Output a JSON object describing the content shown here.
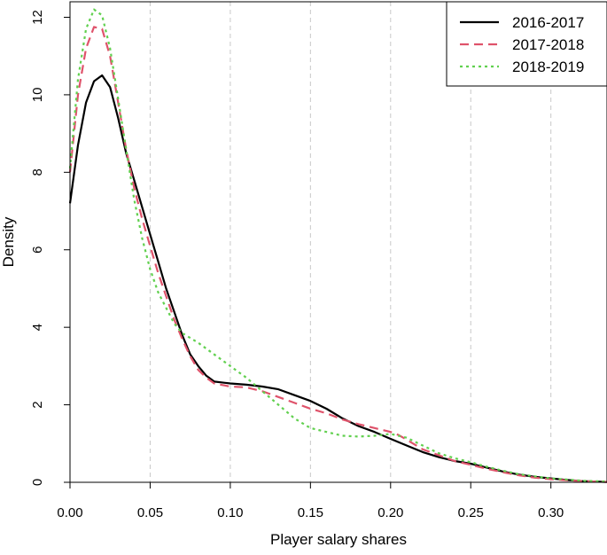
{
  "chart_data": {
    "type": "line",
    "title": "",
    "xlabel": "Player salary shares",
    "ylabel": "Density",
    "xlim": [
      0,
      0.335
    ],
    "ylim": [
      0,
      12.4
    ],
    "xticks": [
      "0.00",
      "0.05",
      "0.10",
      "0.15",
      "0.20",
      "0.25",
      "0.30"
    ],
    "yticks": [
      "0",
      "2",
      "4",
      "6",
      "8",
      "10",
      "12"
    ],
    "grid": "vertical dashed at x ticks",
    "legend_position": "top-right",
    "series": [
      {
        "name": "2016-2017",
        "color": "#000000",
        "dash": "solid",
        "points": [
          [
            0.0,
            7.2
          ],
          [
            0.005,
            8.7
          ],
          [
            0.01,
            9.8
          ],
          [
            0.015,
            10.35
          ],
          [
            0.02,
            10.5
          ],
          [
            0.025,
            10.2
          ],
          [
            0.03,
            9.4
          ],
          [
            0.035,
            8.5
          ],
          [
            0.04,
            7.8
          ],
          [
            0.045,
            7.1
          ],
          [
            0.05,
            6.4
          ],
          [
            0.055,
            5.7
          ],
          [
            0.06,
            5.0
          ],
          [
            0.065,
            4.4
          ],
          [
            0.07,
            3.8
          ],
          [
            0.075,
            3.3
          ],
          [
            0.08,
            3.0
          ],
          [
            0.085,
            2.75
          ],
          [
            0.09,
            2.6
          ],
          [
            0.1,
            2.55
          ],
          [
            0.11,
            2.52
          ],
          [
            0.12,
            2.47
          ],
          [
            0.13,
            2.4
          ],
          [
            0.14,
            2.25
          ],
          [
            0.15,
            2.1
          ],
          [
            0.16,
            1.9
          ],
          [
            0.17,
            1.65
          ],
          [
            0.18,
            1.45
          ],
          [
            0.19,
            1.3
          ],
          [
            0.2,
            1.12
          ],
          [
            0.21,
            0.95
          ],
          [
            0.22,
            0.78
          ],
          [
            0.23,
            0.65
          ],
          [
            0.24,
            0.55
          ],
          [
            0.25,
            0.48
          ],
          [
            0.26,
            0.38
          ],
          [
            0.27,
            0.28
          ],
          [
            0.28,
            0.2
          ],
          [
            0.29,
            0.14
          ],
          [
            0.3,
            0.1
          ],
          [
            0.31,
            0.06
          ],
          [
            0.32,
            0.03
          ],
          [
            0.335,
            0.01
          ]
        ]
      },
      {
        "name": "2017-2018",
        "color": "#DF536B",
        "dash": "dashed",
        "points": [
          [
            0.0,
            8.0
          ],
          [
            0.005,
            10.0
          ],
          [
            0.01,
            11.2
          ],
          [
            0.015,
            11.75
          ],
          [
            0.02,
            11.7
          ],
          [
            0.025,
            11.0
          ],
          [
            0.03,
            9.8
          ],
          [
            0.035,
            8.6
          ],
          [
            0.04,
            7.6
          ],
          [
            0.045,
            6.8
          ],
          [
            0.05,
            6.1
          ],
          [
            0.055,
            5.4
          ],
          [
            0.06,
            4.8
          ],
          [
            0.065,
            4.2
          ],
          [
            0.07,
            3.7
          ],
          [
            0.075,
            3.25
          ],
          [
            0.08,
            2.9
          ],
          [
            0.085,
            2.7
          ],
          [
            0.09,
            2.55
          ],
          [
            0.1,
            2.47
          ],
          [
            0.11,
            2.45
          ],
          [
            0.12,
            2.35
          ],
          [
            0.13,
            2.2
          ],
          [
            0.14,
            2.05
          ],
          [
            0.15,
            1.9
          ],
          [
            0.16,
            1.78
          ],
          [
            0.17,
            1.62
          ],
          [
            0.18,
            1.5
          ],
          [
            0.19,
            1.4
          ],
          [
            0.2,
            1.3
          ],
          [
            0.205,
            1.22
          ],
          [
            0.21,
            1.1
          ],
          [
            0.22,
            0.85
          ],
          [
            0.23,
            0.7
          ],
          [
            0.24,
            0.55
          ],
          [
            0.25,
            0.45
          ],
          [
            0.26,
            0.35
          ],
          [
            0.27,
            0.26
          ],
          [
            0.28,
            0.18
          ],
          [
            0.29,
            0.12
          ],
          [
            0.3,
            0.08
          ],
          [
            0.31,
            0.05
          ],
          [
            0.32,
            0.03
          ],
          [
            0.335,
            0.01
          ]
        ]
      },
      {
        "name": "2018-2019",
        "color": "#61D04F",
        "dash": "dotted",
        "points": [
          [
            0.0,
            8.1
          ],
          [
            0.005,
            10.4
          ],
          [
            0.01,
            11.7
          ],
          [
            0.015,
            12.2
          ],
          [
            0.02,
            12.05
          ],
          [
            0.025,
            11.2
          ],
          [
            0.03,
            9.9
          ],
          [
            0.035,
            8.6
          ],
          [
            0.04,
            7.3
          ],
          [
            0.045,
            6.3
          ],
          [
            0.05,
            5.5
          ],
          [
            0.055,
            4.9
          ],
          [
            0.06,
            4.5
          ],
          [
            0.065,
            4.1
          ],
          [
            0.07,
            3.85
          ],
          [
            0.08,
            3.6
          ],
          [
            0.09,
            3.3
          ],
          [
            0.1,
            3.0
          ],
          [
            0.11,
            2.7
          ],
          [
            0.12,
            2.35
          ],
          [
            0.13,
            2.0
          ],
          [
            0.14,
            1.65
          ],
          [
            0.15,
            1.4
          ],
          [
            0.16,
            1.3
          ],
          [
            0.17,
            1.2
          ],
          [
            0.18,
            1.18
          ],
          [
            0.19,
            1.2
          ],
          [
            0.2,
            1.25
          ],
          [
            0.21,
            1.15
          ],
          [
            0.22,
            0.95
          ],
          [
            0.23,
            0.75
          ],
          [
            0.24,
            0.62
          ],
          [
            0.25,
            0.52
          ],
          [
            0.26,
            0.4
          ],
          [
            0.27,
            0.3
          ],
          [
            0.28,
            0.21
          ],
          [
            0.29,
            0.15
          ],
          [
            0.3,
            0.1
          ],
          [
            0.31,
            0.07
          ],
          [
            0.32,
            0.04
          ],
          [
            0.335,
            0.02
          ]
        ]
      }
    ]
  }
}
